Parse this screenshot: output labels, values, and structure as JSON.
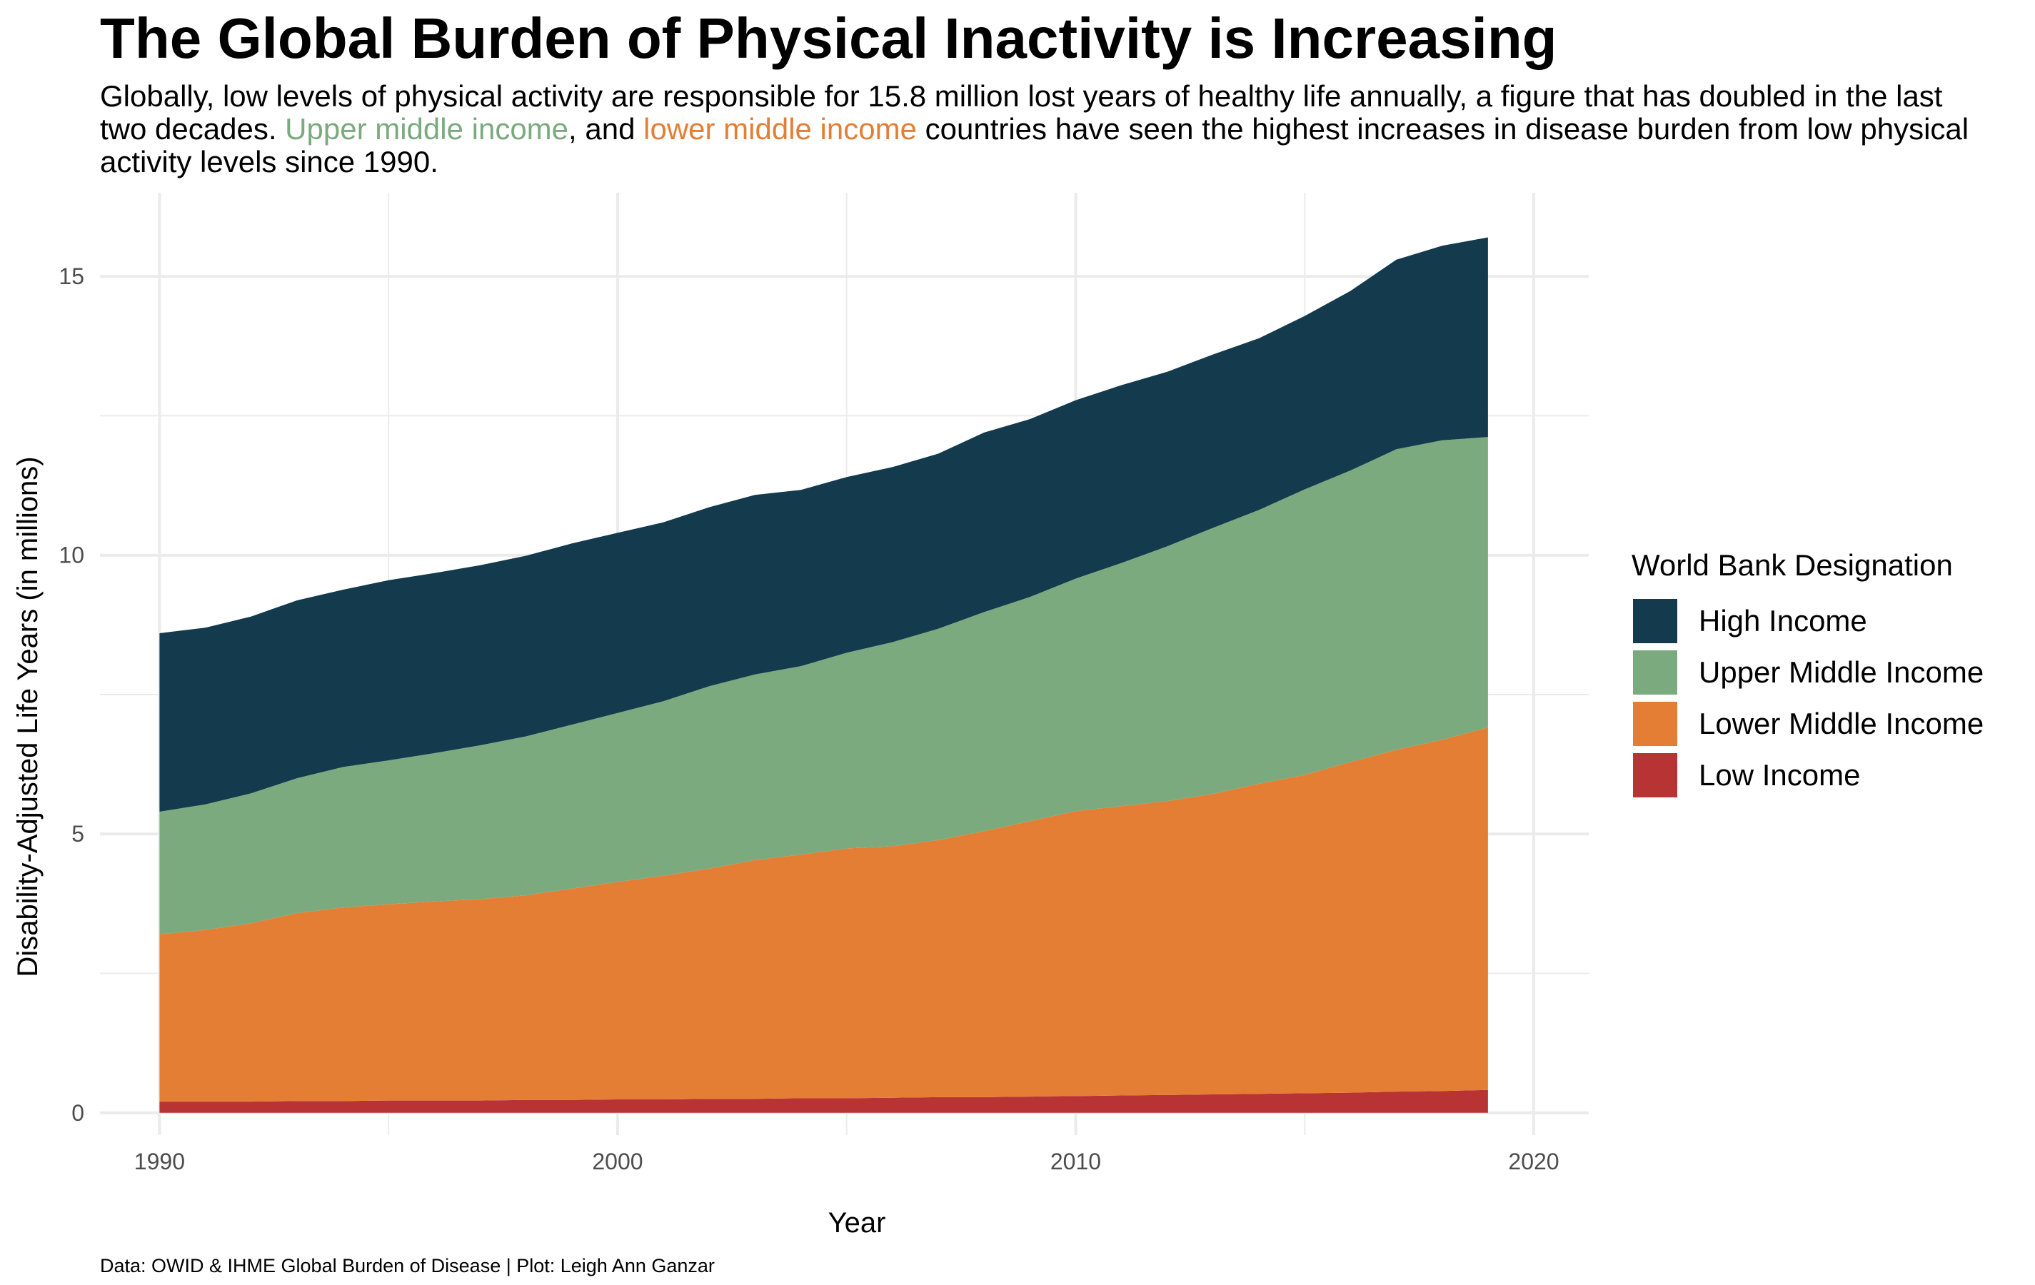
{
  "title": "The Global Burden of Physical Inactivity is Increasing",
  "subtitle": {
    "part1": "Globally, low levels of physical activity are responsible for 15.8 million lost years of healthy life annually, a figure that has doubled in the last two decades. ",
    "highlight_upper": "Upper middle income",
    "part2": ", and ",
    "highlight_lower": "lower middle income",
    "part3": " countries have seen the highest increases in disease burden from low physical activity levels since 1990."
  },
  "caption": "Data: OWID & IHME Global Burden of Disease | Plot: Leigh Ann Ganzar",
  "colors": {
    "high": "#133A4D",
    "upper_middle": "#7BAA7E",
    "lower_middle": "#E57E35",
    "low": "#B83333",
    "grid": "#EBEBEB",
    "tick_text": "#4D4D4D"
  },
  "chart_data": {
    "type": "area",
    "stacked": true,
    "xlabel": "Year",
    "ylabel": "Disability-Adjusted Life Years (in millions)",
    "xlim": [
      1988.7,
      2021.2
    ],
    "ylim": [
      -0.4,
      16.5
    ],
    "x_ticks": [
      1990,
      2000,
      2010,
      2020
    ],
    "y_ticks": [
      0,
      5,
      10,
      15
    ],
    "grid": true,
    "legend_title": "World Bank Designation",
    "legend_position": "right",
    "legend_order": [
      "High Income",
      "Upper Middle Income",
      "Lower Middle Income",
      "Low Income"
    ],
    "x": [
      1990,
      1991,
      1992,
      1993,
      1994,
      1995,
      1996,
      1997,
      1998,
      1999,
      2000,
      2001,
      2002,
      2003,
      2004,
      2005,
      2006,
      2007,
      2008,
      2009,
      2010,
      2011,
      2012,
      2013,
      2014,
      2015,
      2016,
      2017,
      2018,
      2019
    ],
    "series": [
      {
        "name": "Low Income",
        "color_key": "low",
        "values": [
          0.2,
          0.2,
          0.2,
          0.21,
          0.21,
          0.22,
          0.22,
          0.22,
          0.23,
          0.23,
          0.24,
          0.24,
          0.25,
          0.25,
          0.26,
          0.26,
          0.27,
          0.28,
          0.28,
          0.29,
          0.3,
          0.31,
          0.32,
          0.33,
          0.34,
          0.35,
          0.36,
          0.38,
          0.39,
          0.41
        ]
      },
      {
        "name": "Lower Middle Income",
        "color_key": "lower_middle",
        "values": [
          3.0,
          3.08,
          3.2,
          3.37,
          3.47,
          3.52,
          3.57,
          3.61,
          3.67,
          3.79,
          3.9,
          4.01,
          4.13,
          4.28,
          4.37,
          4.48,
          4.51,
          4.61,
          4.77,
          4.94,
          5.11,
          5.19,
          5.27,
          5.39,
          5.56,
          5.71,
          5.93,
          6.13,
          6.3,
          6.5
        ]
      },
      {
        "name": "Upper Middle Income",
        "color_key": "upper_middle",
        "values": [
          2.2,
          2.25,
          2.33,
          2.42,
          2.52,
          2.58,
          2.66,
          2.76,
          2.85,
          2.94,
          3.03,
          3.13,
          3.27,
          3.33,
          3.38,
          3.51,
          3.66,
          3.79,
          3.93,
          4.02,
          4.17,
          4.36,
          4.57,
          4.77,
          4.91,
          5.12,
          5.23,
          5.39,
          5.37,
          5.21
        ]
      },
      {
        "name": "High Income",
        "color_key": "high",
        "values": [
          3.2,
          3.17,
          3.17,
          3.19,
          3.18,
          3.23,
          3.23,
          3.23,
          3.24,
          3.25,
          3.23,
          3.21,
          3.21,
          3.22,
          3.16,
          3.15,
          3.14,
          3.14,
          3.22,
          3.19,
          3.2,
          3.19,
          3.13,
          3.11,
          3.08,
          3.11,
          3.22,
          3.4,
          3.49,
          3.58
        ]
      }
    ]
  }
}
